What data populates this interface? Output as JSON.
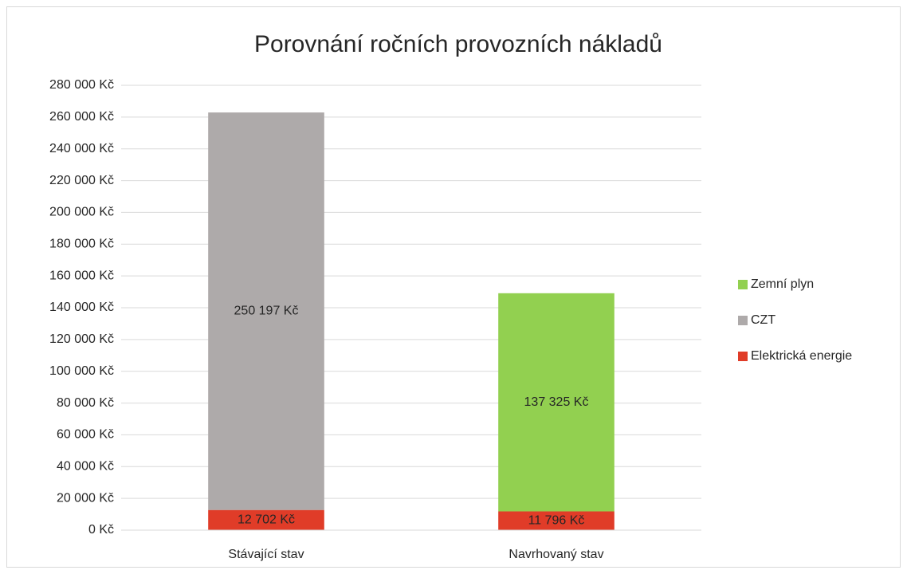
{
  "chart_data": {
    "type": "stacked_bar",
    "title": "Porovnání ročních provozních nákladů",
    "categories": [
      "Stávající stav",
      "Navrhovaný stav"
    ],
    "series": [
      {
        "name": "Elektrická energie",
        "color": "#e03c28",
        "values": [
          12702,
          11796
        ],
        "value_labels": [
          "12 702 Kč",
          "11 796 Kč"
        ]
      },
      {
        "name": "CZT",
        "color": "#aeaaaa",
        "values": [
          250197,
          null
        ],
        "value_labels": [
          "250 197 Kč",
          null
        ]
      },
      {
        "name": "Zemní plyn",
        "color": "#92d050",
        "values": [
          null,
          137325
        ],
        "value_labels": [
          null,
          "137 325 Kč"
        ]
      }
    ],
    "ylim": [
      0,
      280000
    ],
    "yticks": [
      {
        "value": 0,
        "label": "0 Kč"
      },
      {
        "value": 20000,
        "label": "20 000 Kč"
      },
      {
        "value": 40000,
        "label": "40 000 Kč"
      },
      {
        "value": 60000,
        "label": "60 000 Kč"
      },
      {
        "value": 80000,
        "label": "80 000 Kč"
      },
      {
        "value": 100000,
        "label": "100 000 Kč"
      },
      {
        "value": 120000,
        "label": "120 000 Kč"
      },
      {
        "value": 140000,
        "label": "140 000 Kč"
      },
      {
        "value": 160000,
        "label": "160 000 Kč"
      },
      {
        "value": 180000,
        "label": "180 000 Kč"
      },
      {
        "value": 200000,
        "label": "200 000 Kč"
      },
      {
        "value": 220000,
        "label": "220 000 Kč"
      },
      {
        "value": 240000,
        "label": "240 000 Kč"
      },
      {
        "value": 260000,
        "label": "260 000 Kč"
      },
      {
        "value": 280000,
        "label": "280 000 Kč"
      }
    ],
    "grid": true,
    "legend": "right"
  }
}
